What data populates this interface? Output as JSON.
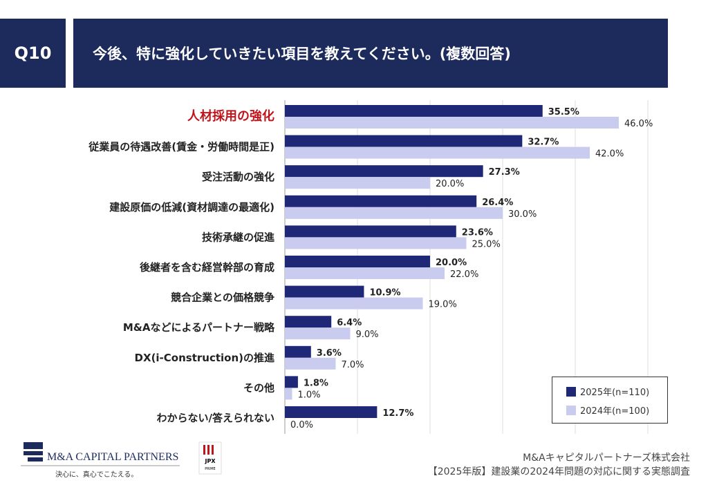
{
  "header": {
    "question": "Q10",
    "title": "今後、特に強化していきたい項目を教えてください。(複数回答)"
  },
  "chart_data": {
    "type": "bar",
    "orientation": "horizontal",
    "categories": [
      "人材採用の強化",
      "従業員の待遇改善(賃金・労働時間是正)",
      "受注活動の強化",
      "建設原価の低減(資材調達の最適化)",
      "技術承継の促進",
      "後継者を含む経営幹部の育成",
      "競合企業との価格競争",
      "M&Aなどによるパートナー戦略",
      "DX(i-Construction)の推進",
      "その他",
      "わからない/答えられない"
    ],
    "series": [
      {
        "name": "2025年(n=110)",
        "color": "#1f2877",
        "values": [
          35.5,
          32.7,
          27.3,
          26.4,
          23.6,
          20.0,
          10.9,
          6.4,
          3.6,
          1.8,
          12.7
        ]
      },
      {
        "name": "2024年(n=100)",
        "color": "#c9cbef",
        "values": [
          46.0,
          42.0,
          20.0,
          30.0,
          25.0,
          22.0,
          19.0,
          9.0,
          7.0,
          1.0,
          0.0
        ]
      }
    ],
    "xlim": [
      0,
      50
    ],
    "grid": true,
    "legend": "bottom-right",
    "highlight_category_color": "#c0141b"
  },
  "footer": {
    "company": "M&Aキャピタルパートナーズ株式会社",
    "survey": "【2025年版】建設業の2024年問題の対応に関する実態調査"
  },
  "logo": {
    "name": "M&A CAPITAL PARTNERS",
    "tagline": "決心に、真心でこたえる。",
    "jpx": "JPX",
    "prime": "PRIME"
  }
}
